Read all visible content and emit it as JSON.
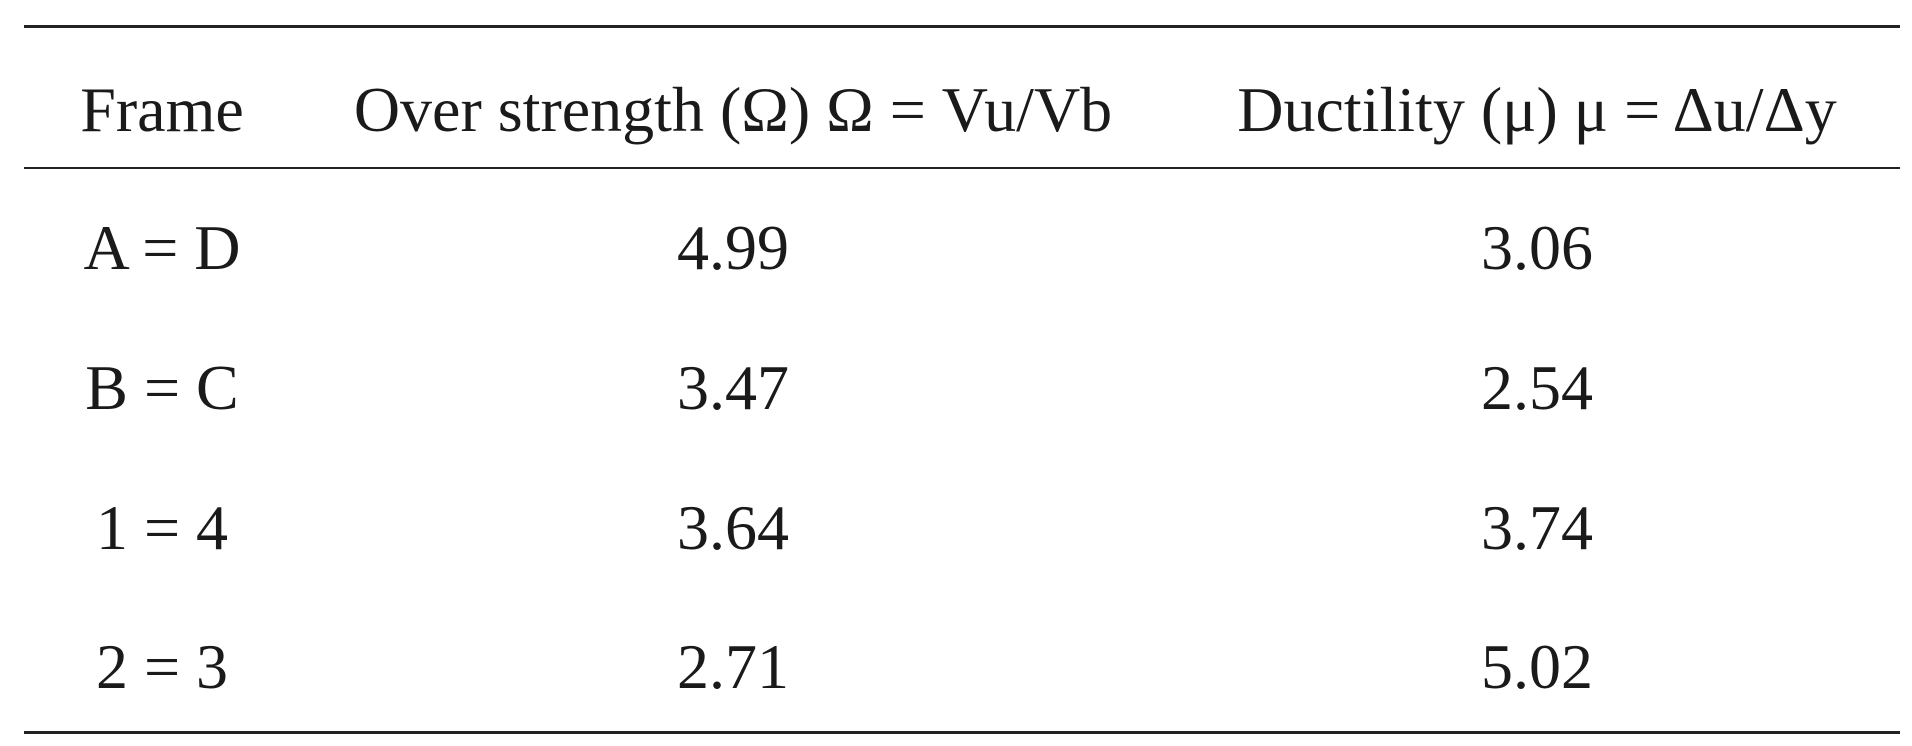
{
  "table": {
    "header": [
      "Frame",
      "Over strength (Ω) Ω = Vu/Vb",
      "Ductility (μ) μ = Δu/Δy"
    ],
    "rows": [
      [
        "A = D",
        "4.99",
        "3.06"
      ],
      [
        "B = C",
        "3.47",
        "2.54"
      ],
      [
        "1 = 4",
        "3.64",
        "3.74"
      ],
      [
        "2 = 3",
        "2.71",
        "5.02"
      ]
    ]
  }
}
